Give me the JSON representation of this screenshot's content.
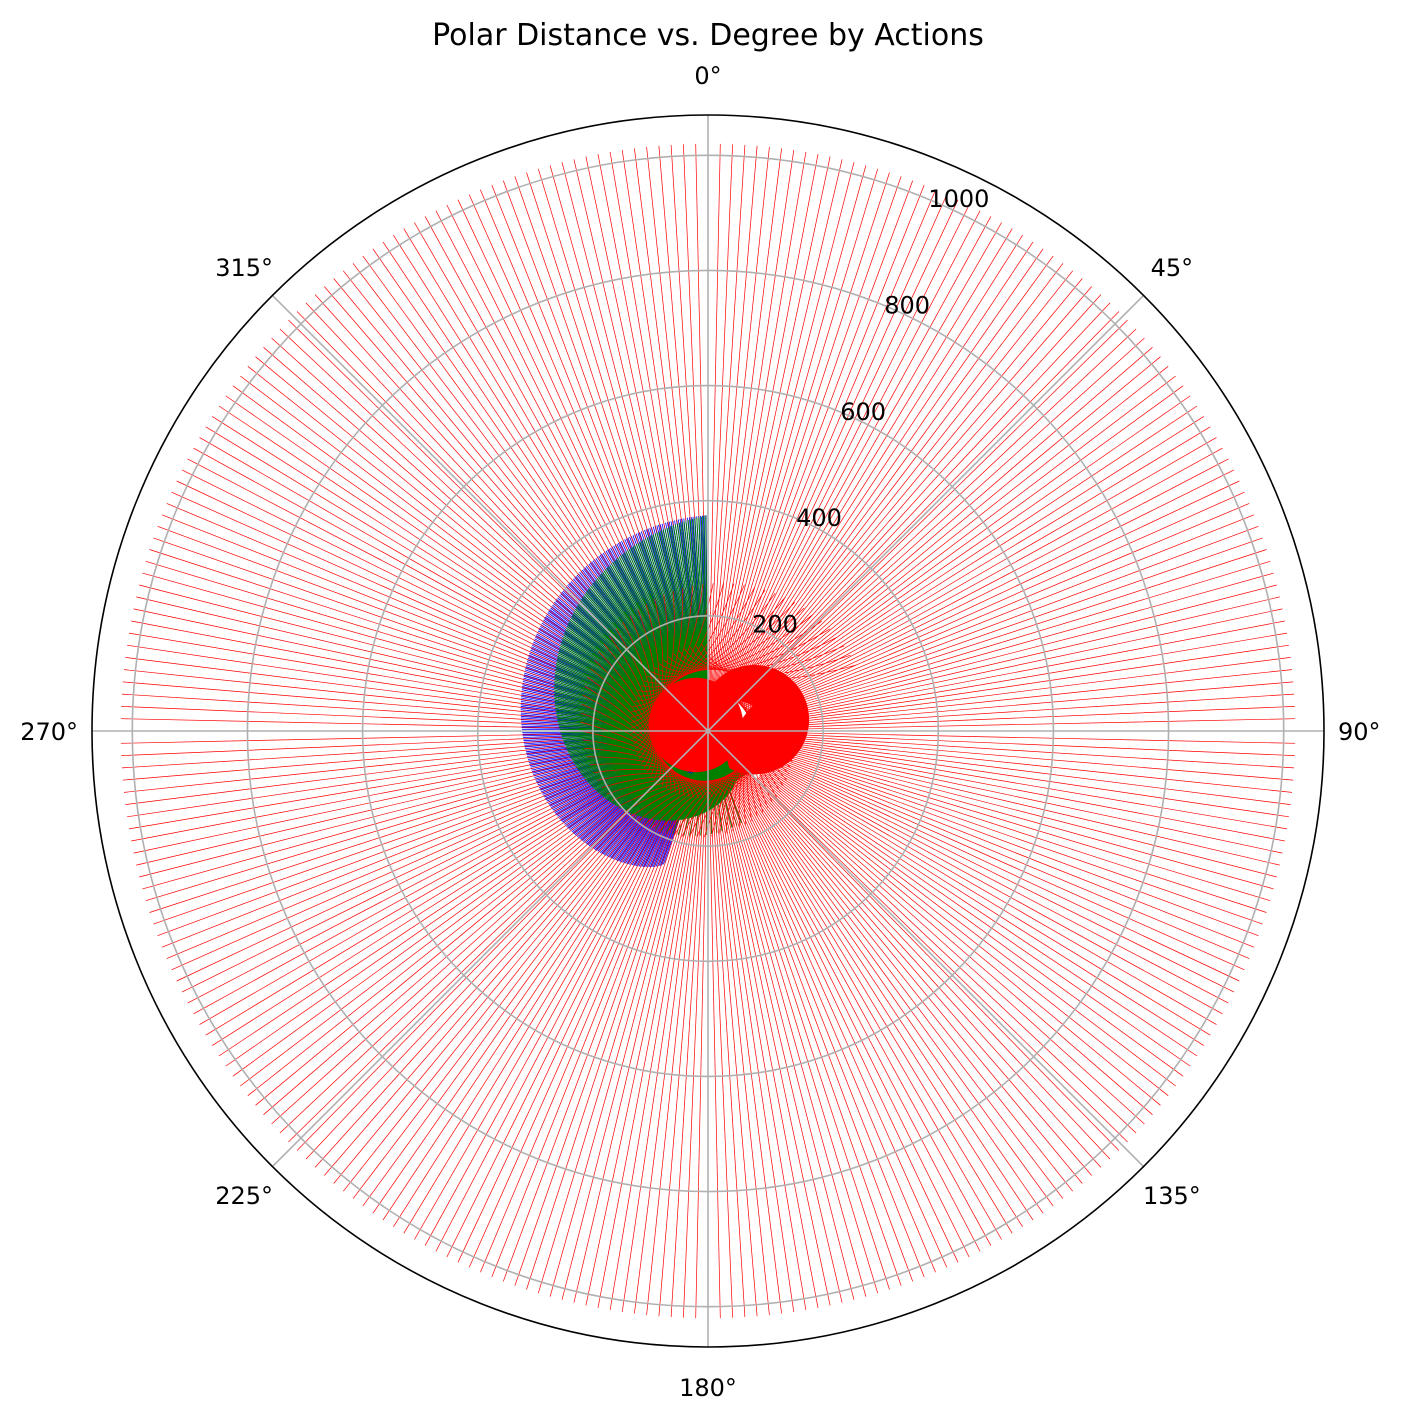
{
  "chart_data": {
    "type": "polar-lines",
    "title": "Polar Distance vs. Degree by Actions",
    "theta_direction": "clockwise",
    "theta_zero": "top",
    "angle_ticks": [
      {
        "angle": 0,
        "label": "0°"
      },
      {
        "angle": 45,
        "label": "45°"
      },
      {
        "angle": 90,
        "label": "90°"
      },
      {
        "angle": 135,
        "label": "135°"
      },
      {
        "angle": 180,
        "label": "180°"
      },
      {
        "angle": 225,
        "label": "225°"
      },
      {
        "angle": 270,
        "label": "270°"
      },
      {
        "angle": 315,
        "label": "315°"
      }
    ],
    "radial_ticks": [
      {
        "value": 200,
        "label": "200"
      },
      {
        "value": 400,
        "label": "400"
      },
      {
        "value": 600,
        "label": "600"
      },
      {
        "value": 800,
        "label": "800"
      },
      {
        "value": 1000,
        "label": "1000"
      }
    ],
    "rlim": [
      0,
      1070
    ],
    "grid": true,
    "legend": "none",
    "series": [
      {
        "color": "#0000ff",
        "degree_range": [
          198,
          360
        ],
        "distance_range": [
          0,
          375
        ],
        "shape": "spiral fan"
      },
      {
        "color": "#008000",
        "degree_range": [
          135,
          360
        ],
        "distance_range": [
          80,
          375
        ],
        "shape": "spiral fan"
      },
      {
        "color": "#ff0000",
        "degree_range": [
          0,
          360
        ],
        "distance_range": [
          0,
          1020
        ],
        "shape": "radial lines spiralling outward"
      }
    ]
  }
}
